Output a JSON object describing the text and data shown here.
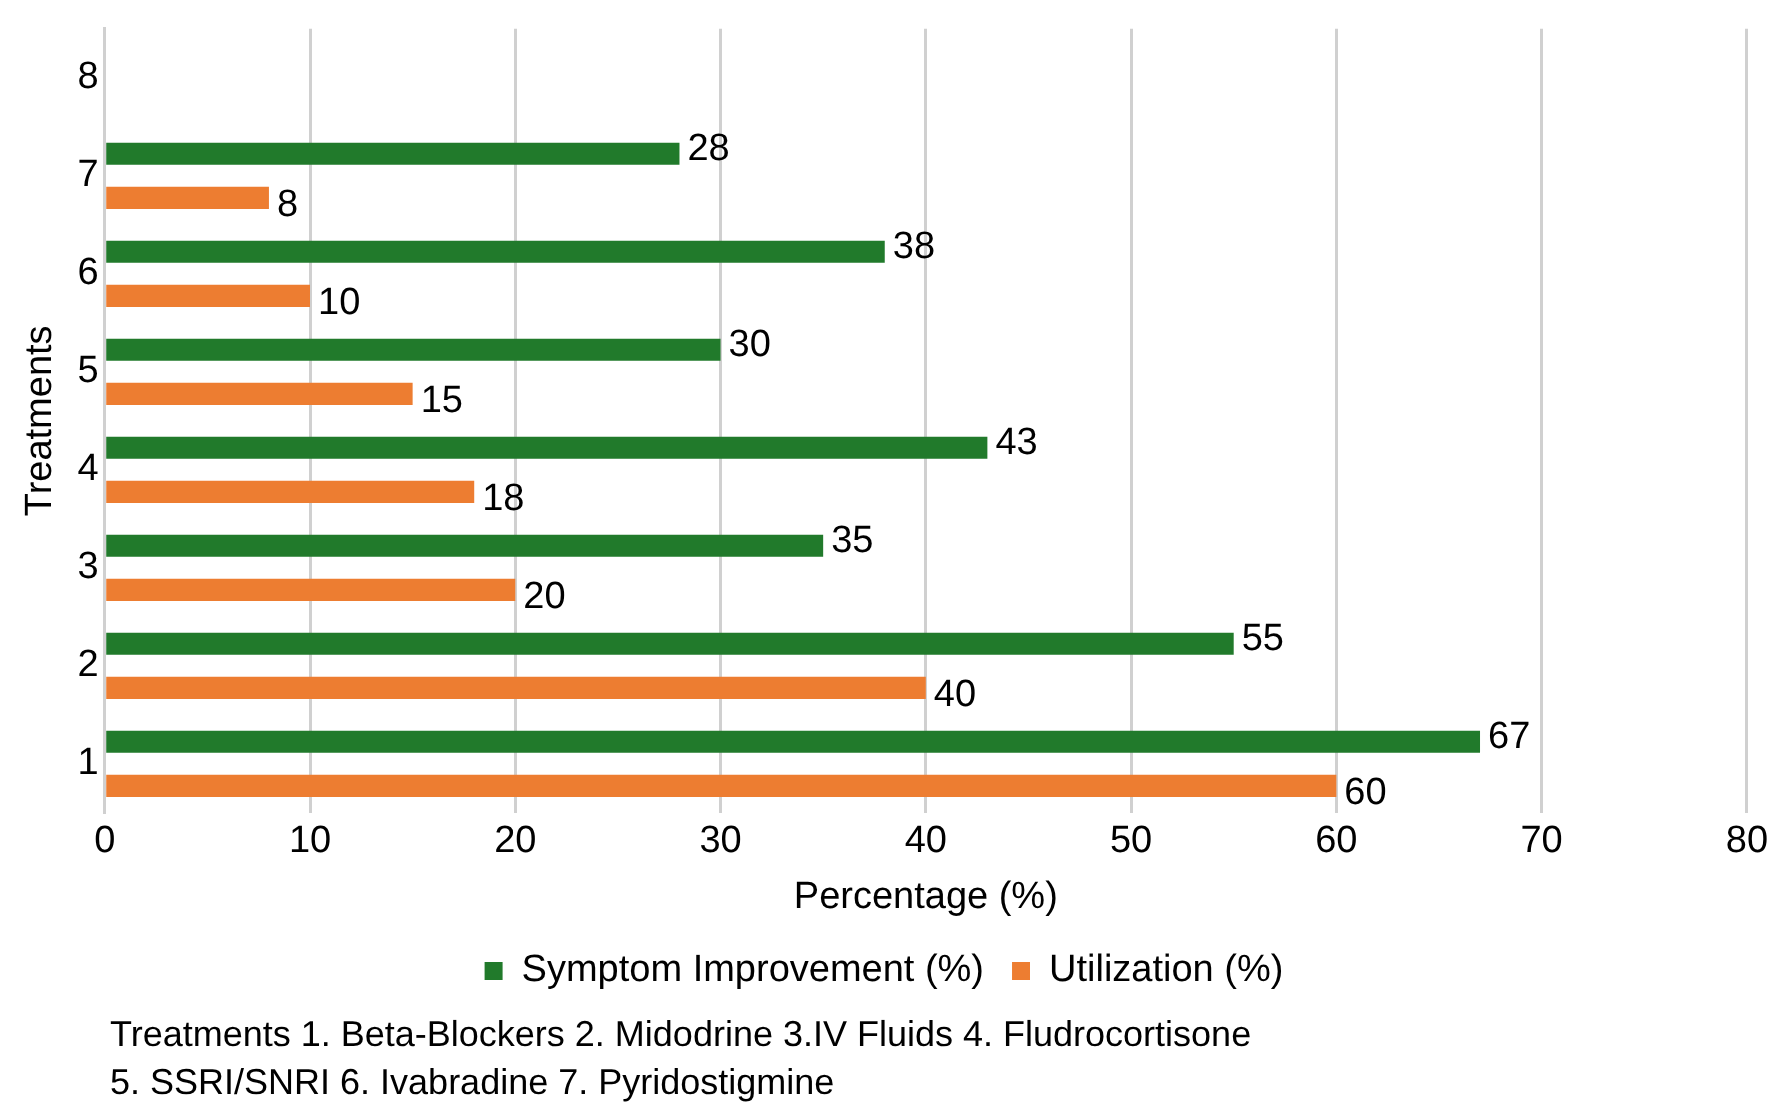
{
  "chart_data": {
    "type": "bar",
    "orientation": "horizontal",
    "xlabel": "Percentage (%)",
    "ylabel": "Treatments",
    "categories": [
      "8",
      "7",
      "6",
      "5",
      "4",
      "3",
      "2",
      "1"
    ],
    "series": [
      {
        "name": "Symptom Improvement (%)",
        "color": "#217a2b",
        "values": [
          null,
          28,
          38,
          30,
          43,
          35,
          55,
          67
        ]
      },
      {
        "name": "Utilization (%)",
        "color": "#ed7d31",
        "values": [
          null,
          8,
          10,
          15,
          18,
          20,
          40,
          60
        ]
      }
    ],
    "xlim": [
      0,
      80
    ],
    "xticks": [
      0,
      10,
      20,
      30,
      40,
      50,
      60,
      70,
      80
    ],
    "grid": "x",
    "legend": "bottom",
    "data_labels": true,
    "annotations": [
      "Treatments 1. Beta-Blockers 2. Midodrine 3.IV Fluids 4. Fludrocortisone",
      "5. SSRI/SNRI 6. Ivabradine 7. Pyridostigmine"
    ]
  }
}
